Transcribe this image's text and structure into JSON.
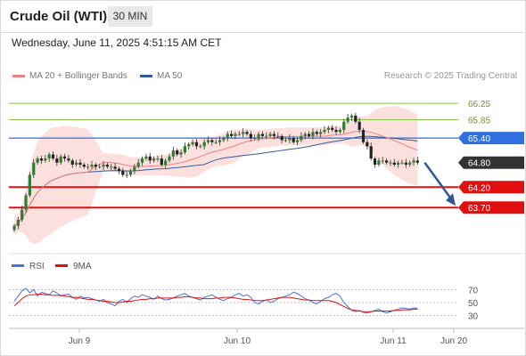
{
  "header": {
    "instrument": "Crude Oil (WTI)",
    "timeframe": "30 MIN",
    "datetime": "Wednesday, June 11, 2025 4:51:15 AM CET"
  },
  "legend": {
    "ma20": "MA 20 + Bollinger Bands",
    "ma50": "MA 50",
    "credit": "Research © 2025 Trading Central",
    "ma20_color": "#f08080",
    "ma50_color": "#2e5d9e"
  },
  "price_levels": [
    {
      "label": "66.25",
      "value": 66.25,
      "kind": "resistance-light",
      "color": "#8bc34a"
    },
    {
      "label": "65.85",
      "value": 65.85,
      "kind": "resistance-light",
      "color": "#8bc34a"
    },
    {
      "label": "65.40",
      "value": 65.4,
      "kind": "pivot",
      "color": "#2f6fe0"
    },
    {
      "label": "64.80",
      "value": 64.8,
      "kind": "current",
      "color": "#333333"
    },
    {
      "label": "64.20",
      "value": 64.2,
      "kind": "support",
      "color": "#e01010"
    },
    {
      "label": "63.70",
      "value": 63.7,
      "kind": "support",
      "color": "#e01010"
    }
  ],
  "rsi_panel": {
    "rsi_label": "RSI",
    "ma_label": "9MA",
    "rsi_color": "#4a6fd8",
    "ma_color": "#e01010",
    "levels": [
      "70",
      "50",
      "30"
    ]
  },
  "x_axis": {
    "labels": [
      "Jun 9",
      "Jun 10",
      "Jun 11",
      "Jun 20"
    ]
  },
  "chart_data": {
    "type": "candlestick",
    "y_range": [
      62.9,
      66.6
    ],
    "closes": [
      63.25,
      63.4,
      63.65,
      64.0,
      64.5,
      64.8,
      64.9,
      64.85,
      64.9,
      65.0,
      64.9,
      64.8,
      64.95,
      64.9,
      64.85,
      64.75,
      64.8,
      64.75,
      64.7,
      64.7,
      64.75,
      64.7,
      64.7,
      64.75,
      64.7,
      64.7,
      64.65,
      64.6,
      64.5,
      64.5,
      64.6,
      64.7,
      64.8,
      64.9,
      64.95,
      64.85,
      64.9,
      64.9,
      64.75,
      64.85,
      64.95,
      65.1,
      65.0,
      65.05,
      65.2,
      65.25,
      65.3,
      65.2,
      65.2,
      65.3,
      65.35,
      65.3,
      65.3,
      65.35,
      65.4,
      65.5,
      65.45,
      65.5,
      65.5,
      65.55,
      65.5,
      65.4,
      65.4,
      65.5,
      65.45,
      65.45,
      65.5,
      65.45,
      65.45,
      65.35,
      65.35,
      65.4,
      65.3,
      65.35,
      65.45,
      65.5,
      65.45,
      65.55,
      65.5,
      65.55,
      65.6,
      65.65,
      65.6,
      65.55,
      65.6,
      65.8,
      65.9,
      65.95,
      65.8,
      65.6,
      65.3,
      65.2,
      64.9,
      64.75,
      64.85,
      64.85,
      64.8,
      64.8,
      64.75,
      64.8,
      64.8,
      64.75,
      64.8,
      64.85,
      64.8
    ],
    "rsi": [
      52,
      60,
      68,
      72,
      65,
      70,
      60,
      66,
      64,
      62,
      68,
      65,
      60,
      62,
      63,
      58,
      55,
      60,
      57,
      58,
      56,
      54,
      52,
      55,
      50,
      48,
      45,
      52,
      55,
      50,
      56,
      60,
      58,
      62,
      60,
      58,
      55,
      60,
      56,
      54,
      55,
      57,
      60,
      62,
      64,
      60,
      58,
      56,
      54,
      58,
      60,
      62,
      58,
      55,
      53,
      56,
      58,
      62,
      64,
      60,
      62,
      58,
      50,
      48,
      52,
      54,
      50,
      52,
      56,
      58,
      60,
      62,
      66,
      64,
      60,
      56,
      54,
      50,
      48,
      52,
      56,
      58,
      62,
      64,
      60,
      50,
      44,
      38,
      36,
      38,
      35,
      34,
      36,
      38,
      40,
      36,
      34,
      36,
      38,
      40,
      42,
      41,
      40,
      42,
      41
    ],
    "rsi_ma": [
      45,
      50,
      56,
      60,
      62,
      62,
      63,
      63,
      62,
      62,
      61,
      61,
      61,
      60,
      59,
      58,
      58,
      57,
      56,
      55,
      55,
      54,
      53,
      52,
      52,
      51,
      50,
      50,
      51,
      52,
      52,
      53,
      54,
      55,
      55,
      56,
      56,
      57,
      57,
      57,
      57,
      57,
      58,
      58,
      59,
      59,
      58,
      57,
      57,
      56,
      56,
      56,
      57,
      57,
      58,
      58,
      58,
      57,
      56,
      55,
      55,
      54,
      53,
      53,
      53,
      54,
      55,
      56,
      57,
      58,
      58,
      58,
      57,
      56,
      55,
      54,
      54,
      53,
      53,
      53,
      53,
      53,
      52,
      50,
      47,
      44,
      41,
      39,
      38,
      37,
      36,
      36,
      36,
      37,
      37,
      37,
      37,
      37,
      38,
      38,
      39,
      39,
      39,
      40,
      40
    ],
    "rsi_levels": [
      70,
      50,
      30
    ]
  }
}
